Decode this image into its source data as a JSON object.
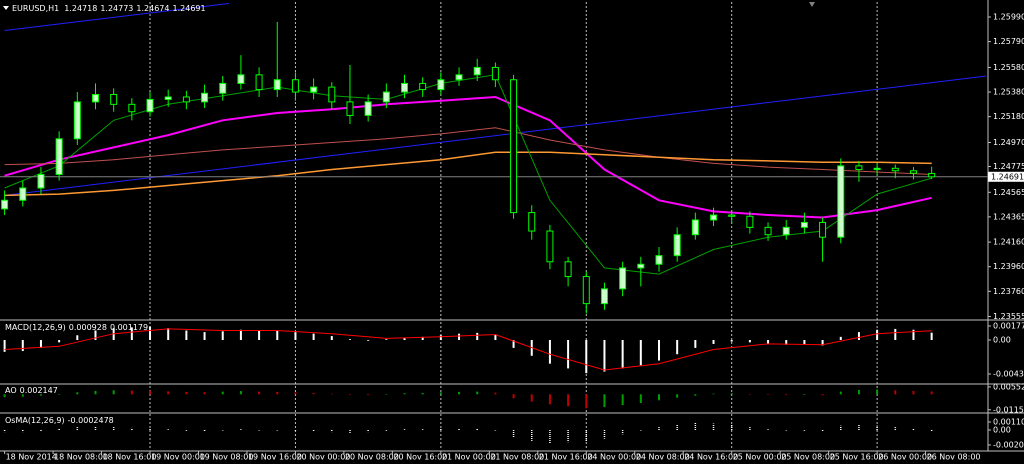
{
  "chart_data": [
    {
      "type": "candlestick",
      "title": "EURUSD,H1",
      "x": [
        0,
        3,
        6,
        9,
        12,
        15,
        18,
        21,
        24,
        27,
        30,
        33,
        36,
        39,
        42,
        45,
        48,
        51,
        54,
        57,
        60,
        63,
        66,
        69,
        72,
        75,
        78,
        81,
        84,
        87,
        90,
        93,
        96,
        99,
        102,
        105,
        108,
        111,
        114,
        117,
        120,
        123,
        126,
        129,
        132,
        135,
        138,
        141,
        144,
        147,
        150,
        153
      ],
      "open": [
        1.2443,
        1.245,
        1.246,
        1.2471,
        1.25,
        1.253,
        1.2536,
        1.2528,
        1.2522,
        1.2532,
        1.2534,
        1.253,
        1.2537,
        1.2545,
        1.2552,
        1.254,
        1.2548,
        1.2538,
        1.2542,
        1.253,
        1.2519,
        1.253,
        1.2538,
        1.2545,
        1.254,
        1.2548,
        1.2552,
        1.2558,
        1.2548,
        1.244,
        1.2425,
        1.24,
        1.2388,
        1.2366,
        1.2378,
        1.2395,
        1.2398,
        1.2405,
        1.2422,
        1.2434,
        1.2438,
        1.2437,
        1.2428,
        1.2422,
        1.2428,
        1.2432,
        1.242,
        1.2478,
        1.2475,
        1.2476,
        1.2474,
        1.24718
      ],
      "high": [
        1.2458,
        1.2466,
        1.2477,
        1.2506,
        1.2538,
        1.2545,
        1.2541,
        1.2533,
        1.2538,
        1.254,
        1.2539,
        1.2544,
        1.2551,
        1.2568,
        1.2558,
        1.2595,
        1.2554,
        1.2549,
        1.2546,
        1.256,
        1.2536,
        1.2545,
        1.2552,
        1.255,
        1.2554,
        1.2558,
        1.2565,
        1.2562,
        1.2552,
        1.2446,
        1.243,
        1.2404,
        1.2392,
        1.2383,
        1.24,
        1.2404,
        1.2412,
        1.2428,
        1.244,
        1.2444,
        1.2442,
        1.2441,
        1.2432,
        1.2434,
        1.244,
        1.2436,
        1.2484,
        1.2482,
        1.248,
        1.2479,
        1.2477,
        1.24773
      ],
      "low": [
        1.2438,
        1.2445,
        1.2455,
        1.2466,
        1.2495,
        1.2524,
        1.2522,
        1.2515,
        1.2518,
        1.2526,
        1.2524,
        1.2525,
        1.2531,
        1.254,
        1.2534,
        1.2534,
        1.2531,
        1.2532,
        1.2524,
        1.2512,
        1.2514,
        1.2525,
        1.2533,
        1.2534,
        1.2536,
        1.2543,
        1.2547,
        1.2542,
        1.2435,
        1.2418,
        1.2394,
        1.238,
        1.2358,
        1.2361,
        1.2372,
        1.238,
        1.2392,
        1.24,
        1.2418,
        1.2429,
        1.2431,
        1.2423,
        1.2417,
        1.2418,
        1.2423,
        1.24,
        1.2415,
        1.2465,
        1.247,
        1.2468,
        1.2467,
        1.24674
      ],
      "close": [
        1.245,
        1.246,
        1.2471,
        1.25,
        1.253,
        1.2536,
        1.2528,
        1.2522,
        1.2532,
        1.2534,
        1.253,
        1.2537,
        1.2545,
        1.2552,
        1.254,
        1.2548,
        1.2538,
        1.2542,
        1.253,
        1.2519,
        1.253,
        1.2538,
        1.2545,
        1.254,
        1.2548,
        1.2552,
        1.2558,
        1.2548,
        1.244,
        1.2425,
        1.24,
        1.2388,
        1.2366,
        1.2378,
        1.2395,
        1.2398,
        1.2405,
        1.2422,
        1.2434,
        1.2438,
        1.2437,
        1.2428,
        1.2422,
        1.2428,
        1.2432,
        1.242,
        1.2478,
        1.2475,
        1.2476,
        1.2474,
        1.2472,
        1.24691
      ],
      "up_color": "#ccffcc",
      "down_color": "#000000",
      "wick_color": "#00ff00",
      "ma_x": [
        0,
        9,
        18,
        27,
        36,
        45,
        54,
        63,
        72,
        81,
        90,
        99,
        108,
        117,
        126,
        135,
        144,
        153
      ],
      "overlays": [
        {
          "color": "#ff00ff",
          "width": 2,
          "values": [
            1.247,
            1.2483,
            1.2493,
            1.2503,
            1.2515,
            1.2521,
            1.2524,
            1.2528,
            1.2531,
            1.2534,
            1.2515,
            1.2475,
            1.245,
            1.2441,
            1.2438,
            1.2436,
            1.2442,
            1.2452
          ]
        },
        {
          "color": "#c0504d",
          "width": 1,
          "values": [
            1.2479,
            1.248,
            1.2483,
            1.2487,
            1.2491,
            1.2494,
            1.2497,
            1.25,
            1.2504,
            1.2509,
            1.2499,
            1.2491,
            1.2485,
            1.248,
            1.2477,
            1.2475,
            1.2473,
            1.2471
          ]
        },
        {
          "color": "#ff9933",
          "width": 1.5,
          "values": [
            1.2454,
            1.2455,
            1.2458,
            1.2462,
            1.2466,
            1.247,
            1.2475,
            1.2479,
            1.2483,
            1.2489,
            1.2489,
            1.2487,
            1.2485,
            1.2483,
            1.2482,
            1.2481,
            1.2481,
            1.248
          ]
        },
        {
          "color": "#00a000",
          "width": 1,
          "values": [
            1.246,
            1.2478,
            1.2515,
            1.2528,
            1.2535,
            1.2542,
            1.2535,
            1.2532,
            1.2545,
            1.2552,
            1.245,
            1.2395,
            1.239,
            1.241,
            1.242,
            1.2425,
            1.2455,
            1.2468
          ]
        }
      ],
      "trendlines": [
        {
          "color": "#2020ff",
          "x": [
            0,
            37
          ],
          "values": [
            1.2588,
            1.261
          ]
        },
        {
          "color": "#2020ff",
          "x": [
            0,
            162
          ],
          "values": [
            1.2454,
            1.2551
          ]
        }
      ],
      "xlim": [
        -0.76,
        162.3
      ],
      "ylim": [
        1.23543,
        1.26112
      ],
      "yticks": [
        {
          "value": 1.2599,
          "label": "1.25990"
        },
        {
          "value": 1.2579,
          "label": "1.25790"
        },
        {
          "value": 1.2558,
          "label": "1.25580"
        },
        {
          "value": 1.2538,
          "label": "1.25380"
        },
        {
          "value": 1.2518,
          "label": "1.25180"
        },
        {
          "value": 1.2497,
          "label": "1.24970"
        },
        1.24775,
        1.24565,
        1.24365,
        {
          "value": 1.2416,
          "label": "1.24160"
        },
        {
          "value": 1.2396,
          "label": "1.23960"
        },
        {
          "value": 1.2376,
          "label": "1.23760"
        },
        1.23555
      ],
      "xticks": [
        {
          "value": 0,
          "label": "18 Nov 2014"
        },
        {
          "value": 8,
          "label": "18 Nov 08:00"
        },
        {
          "value": 16,
          "label": "18 Nov 16:00"
        },
        {
          "value": 24,
          "label": "19 Nov 00:00"
        },
        {
          "value": 32,
          "label": "19 Nov 08:00"
        },
        {
          "value": 40,
          "label": "19 Nov 16:00"
        },
        {
          "value": 48,
          "label": "20 Nov 00:00"
        },
        {
          "value": 56,
          "label": "20 Nov 08:00"
        },
        {
          "value": 64,
          "label": "20 Nov 16:00"
        },
        {
          "value": 72,
          "label": "21 Nov 00:00"
        },
        {
          "value": 80,
          "label": "21 Nov 08:00"
        },
        {
          "value": 88,
          "label": "21 Nov 16:00"
        },
        {
          "value": 96,
          "label": "24 Nov 00:00"
        },
        {
          "value": 104,
          "label": "24 Nov 08:00"
        },
        {
          "value": 112,
          "label": "24 Nov 16:00"
        },
        {
          "value": 120,
          "label": "25 Nov 00:00"
        },
        {
          "value": 128,
          "label": "25 Nov 08:00"
        },
        {
          "value": 136,
          "label": "25 Nov 16:00"
        },
        {
          "value": 144,
          "label": "26 Nov 00:00"
        },
        {
          "value": 152,
          "label": "26 Nov 08:00"
        }
      ],
      "grid": true
    },
    {
      "type": "macd",
      "title": "MACD(12,26,9)",
      "color": "#ffffff",
      "signal_color": "#ff0000",
      "values": [
        -0.0015,
        -0.0014,
        -0.001,
        -0.0003,
        0.0006,
        0.0012,
        0.0015,
        0.0016,
        0.0017,
        0.0015,
        0.0012,
        0.001,
        0.0011,
        0.0013,
        0.0012,
        0.0012,
        0.001,
        0.0008,
        0.0005,
        0.0001,
        -0.0001,
        0.0001,
        0.0003,
        0.0004,
        0.0006,
        0.0008,
        0.0009,
        0.0007,
        -0.001,
        -0.002,
        -0.003,
        -0.0036,
        -0.0042,
        -0.004,
        -0.0036,
        -0.0032,
        -0.0026,
        -0.0018,
        -0.001,
        -0.0005,
        -0.0002,
        -0.0003,
        -0.0005,
        -0.0006,
        -0.0006,
        -0.0007,
        0.0004,
        0.001,
        0.0013,
        0.0014,
        0.0013,
        0.000928
      ],
      "signal": [
        -0.0012,
        -0.0008,
        0.0008,
        0.0014,
        0.0012,
        0.0012,
        0.0008,
        0.0002,
        0.0004,
        0.0007,
        -0.0018,
        -0.0038,
        -0.003,
        -0.0012,
        -0.0005,
        -0.0006,
        0.0008,
        0.001179
      ],
      "ylim": [
        -0.00532,
        0.00228
      ],
      "yticks": [
        0.001773,
        {
          "value": 0,
          "label": "0.00"
        },
        -0.004308
      ]
    },
    {
      "type": "ao",
      "title": "AO",
      "up_color": "#00a000",
      "down_color": "#c00000",
      "values": [
        -0.002,
        -0.0018,
        -0.001,
        0.0,
        0.0015,
        0.0025,
        0.003,
        0.0028,
        0.0026,
        0.0022,
        0.0018,
        0.0016,
        0.002,
        0.0024,
        0.002,
        0.0018,
        0.0014,
        0.001,
        0.0004,
        -0.0004,
        -0.0006,
        0.0002,
        0.0008,
        0.001,
        0.0014,
        0.0018,
        0.002,
        0.0012,
        -0.003,
        -0.0055,
        -0.0075,
        -0.009,
        -0.0105,
        -0.0095,
        -0.008,
        -0.0065,
        -0.0045,
        -0.0025,
        -0.001,
        0.0005,
        0.0008,
        0.0002,
        -0.0004,
        -0.0006,
        -0.0005,
        -0.0008,
        0.002,
        0.0032,
        0.0036,
        0.003,
        0.0025,
        0.002147
      ],
      "ylim": [
        -0.0125,
        0.0062
      ],
      "yticks": [
        0.005527,
        -0.011574
      ]
    },
    {
      "type": "osma",
      "title": "OsMA(12,26,9)",
      "color": "#ffffff",
      "values": [
        -0.0003,
        -0.0003,
        -0.0002,
        0.0002,
        0.0004,
        0.0005,
        0.0004,
        0.0003,
        0.0002,
        0.0001,
        -0.0001,
        -0.0002,
        0.0,
        0.0001,
        0.0,
        0.0,
        -0.0001,
        -0.0002,
        -0.0003,
        -0.0004,
        -0.0003,
        -0.0001,
        0.0001,
        0.0001,
        0.0002,
        0.0002,
        0.0002,
        0.0,
        -0.001,
        -0.0015,
        -0.0018,
        -0.0017,
        -0.0016,
        -0.0012,
        -0.0006,
        0.0,
        0.0004,
        0.0008,
        0.001,
        0.0009,
        0.0008,
        0.0004,
        0.0001,
        0.0,
        -0.0001,
        -0.0002,
        0.0006,
        0.0008,
        0.0006,
        0.0004,
        0.0002,
        -0.0002478
      ],
      "ylim": [
        -0.00263,
        0.00208
      ],
      "yticks": [
        0.001107,
        {
          "value": 0,
          "label": "0.00"
        },
        -0.00207
      ]
    }
  ]
}
